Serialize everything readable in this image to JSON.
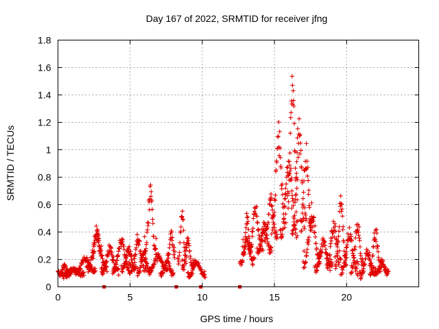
{
  "chart_data": {
    "type": "scatter",
    "title": "Day 167 of 2022, SRMTID for receiver jfng",
    "xlabel": "GPS time / hours",
    "ylabel": "SRMTID / TECUs",
    "xlim": [
      0,
      25
    ],
    "ylim": [
      0,
      1.8
    ],
    "grid": true,
    "marker": "plus",
    "color": "#e00000",
    "xticks": [
      {
        "value": 0,
        "label": "0"
      },
      {
        "value": 5,
        "label": "5"
      },
      {
        "value": 10,
        "label": "10"
      },
      {
        "value": 15,
        "label": "15"
      },
      {
        "value": 20,
        "label": "20"
      }
    ],
    "yticks": [
      {
        "value": 0,
        "label": "0"
      },
      {
        "value": 0.2,
        "label": "0.2"
      },
      {
        "value": 0.4,
        "label": "0.4"
      },
      {
        "value": 0.6,
        "label": "0.6"
      },
      {
        "value": 0.8,
        "label": "0.8"
      },
      {
        "value": 1.0,
        "label": "1"
      },
      {
        "value": 1.2,
        "label": "1.2"
      },
      {
        "value": 1.4,
        "label": "1.4"
      },
      {
        "value": 1.6,
        "label": "1.6"
      },
      {
        "value": 1.8,
        "label": "1.8"
      }
    ],
    "gap_markers_x": [
      3.2,
      8.2,
      9.9,
      12.6
    ],
    "arcs": [
      {
        "start": 0.0,
        "end": 0.9,
        "peak": 0.16,
        "base": 0.08
      },
      {
        "start": 0.3,
        "end": 1.8,
        "peak": 0.14,
        "base": 0.07
      },
      {
        "start": 1.2,
        "end": 2.6,
        "peak": 0.22,
        "base": 0.09
      },
      {
        "start": 2.0,
        "end": 3.4,
        "peak": 0.4,
        "base": 0.1
      },
      {
        "start": 2.4,
        "end": 3.0,
        "peak": 0.47,
        "base": 0.2
      },
      {
        "start": 3.0,
        "end": 4.2,
        "peak": 0.3,
        "base": 0.08
      },
      {
        "start": 3.8,
        "end": 5.0,
        "peak": 0.38,
        "base": 0.09
      },
      {
        "start": 4.4,
        "end": 5.4,
        "peak": 0.3,
        "base": 0.1
      },
      {
        "start": 5.0,
        "end": 6.1,
        "peak": 0.38,
        "base": 0.08
      },
      {
        "start": 5.5,
        "end": 6.4,
        "peak": 0.28,
        "base": 0.07
      },
      {
        "start": 6.0,
        "end": 6.8,
        "peak": 0.74,
        "base": 0.2
      },
      {
        "start": 6.3,
        "end": 7.6,
        "peak": 0.25,
        "base": 0.1
      },
      {
        "start": 7.1,
        "end": 8.0,
        "peak": 0.2,
        "base": 0.08
      },
      {
        "start": 7.6,
        "end": 8.1,
        "peak": 0.42,
        "base": 0.2
      },
      {
        "start": 8.3,
        "end": 8.9,
        "peak": 0.62,
        "base": 0.12
      },
      {
        "start": 8.6,
        "end": 9.4,
        "peak": 0.36,
        "base": 0.1
      },
      {
        "start": 9.0,
        "end": 10.2,
        "peak": 0.2,
        "base": 0.06
      },
      {
        "start": 12.6,
        "end": 13.6,
        "peak": 0.36,
        "base": 0.15
      },
      {
        "start": 12.8,
        "end": 13.4,
        "peak": 0.55,
        "base": 0.2
      },
      {
        "start": 13.2,
        "end": 14.2,
        "peak": 0.62,
        "base": 0.22
      },
      {
        "start": 13.8,
        "end": 14.8,
        "peak": 0.48,
        "base": 0.22
      },
      {
        "start": 14.3,
        "end": 15.2,
        "peak": 0.7,
        "base": 0.3
      },
      {
        "start": 14.8,
        "end": 15.8,
        "peak": 1.2,
        "base": 0.35
      },
      {
        "start": 15.4,
        "end": 16.6,
        "peak": 1.0,
        "base": 0.3
      },
      {
        "start": 15.9,
        "end": 16.6,
        "peak": 1.6,
        "base": 0.5
      },
      {
        "start": 16.2,
        "end": 17.2,
        "peak": 1.24,
        "base": 0.3
      },
      {
        "start": 16.8,
        "end": 17.6,
        "peak": 1.06,
        "base": 0.35
      },
      {
        "start": 17.0,
        "end": 18.2,
        "peak": 0.58,
        "base": 0.12
      },
      {
        "start": 17.8,
        "end": 19.0,
        "peak": 0.35,
        "base": 0.1
      },
      {
        "start": 18.6,
        "end": 19.6,
        "peak": 0.5,
        "base": 0.1
      },
      {
        "start": 19.2,
        "end": 20.0,
        "peak": 0.68,
        "base": 0.1
      },
      {
        "start": 19.6,
        "end": 20.8,
        "peak": 0.42,
        "base": 0.08
      },
      {
        "start": 20.3,
        "end": 21.2,
        "peak": 0.5,
        "base": 0.07
      },
      {
        "start": 20.9,
        "end": 22.0,
        "peak": 0.28,
        "base": 0.05
      },
      {
        "start": 21.6,
        "end": 22.4,
        "peak": 0.45,
        "base": 0.06
      },
      {
        "start": 22.0,
        "end": 22.9,
        "peak": 0.2,
        "base": 0.08
      }
    ]
  }
}
